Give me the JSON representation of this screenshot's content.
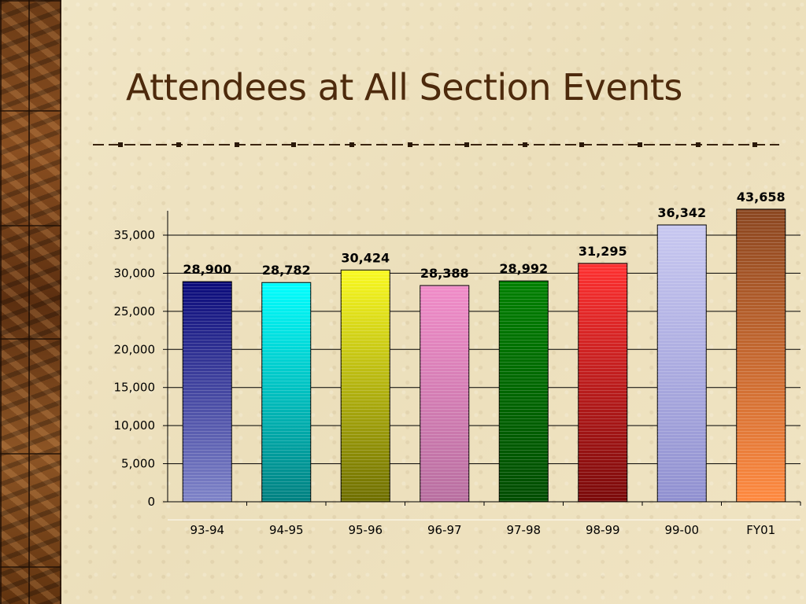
{
  "slide": {
    "title": "Attendees at All Section Events"
  },
  "colors": {
    "title": "#4d2a0c",
    "wood_dark": "#5c2f10",
    "background": "#efe3c2"
  },
  "chart_data": {
    "type": "bar",
    "title": "",
    "xlabel": "",
    "ylabel": "",
    "categories": [
      "93-94",
      "94-95",
      "95-96",
      "96-97",
      "97-98",
      "98-99",
      "99-00",
      "FY01"
    ],
    "values": [
      28900,
      28782,
      30424,
      28388,
      28992,
      31295,
      36342,
      43658
    ],
    "value_labels": [
      "28,900",
      "28,782",
      "30,424",
      "28,388",
      "28,992",
      "31,295",
      "36,342",
      "43,658"
    ],
    "yticks": [
      0,
      5000,
      10000,
      15000,
      20000,
      25000,
      30000,
      35000
    ],
    "ytick_labels": [
      "0",
      "5,000",
      "10,000",
      "15,000",
      "20,000",
      "25,000",
      "30,000",
      "35,000"
    ],
    "ylim": [
      0,
      38000
    ],
    "grid": true,
    "legend": "none",
    "bar_colors": [
      [
        "#0a0a7a",
        "#7f84c8"
      ],
      [
        "#00ffff",
        "#008080"
      ],
      [
        "#fafa20",
        "#6e6e00"
      ],
      [
        "#f08cc8",
        "#b86fa0"
      ],
      [
        "#008000",
        "#004d00"
      ],
      [
        "#ff3030",
        "#7a0a0a"
      ],
      [
        "#c8c8f0",
        "#9090d0"
      ],
      [
        "#8a4620",
        "#ff8a40"
      ]
    ]
  }
}
